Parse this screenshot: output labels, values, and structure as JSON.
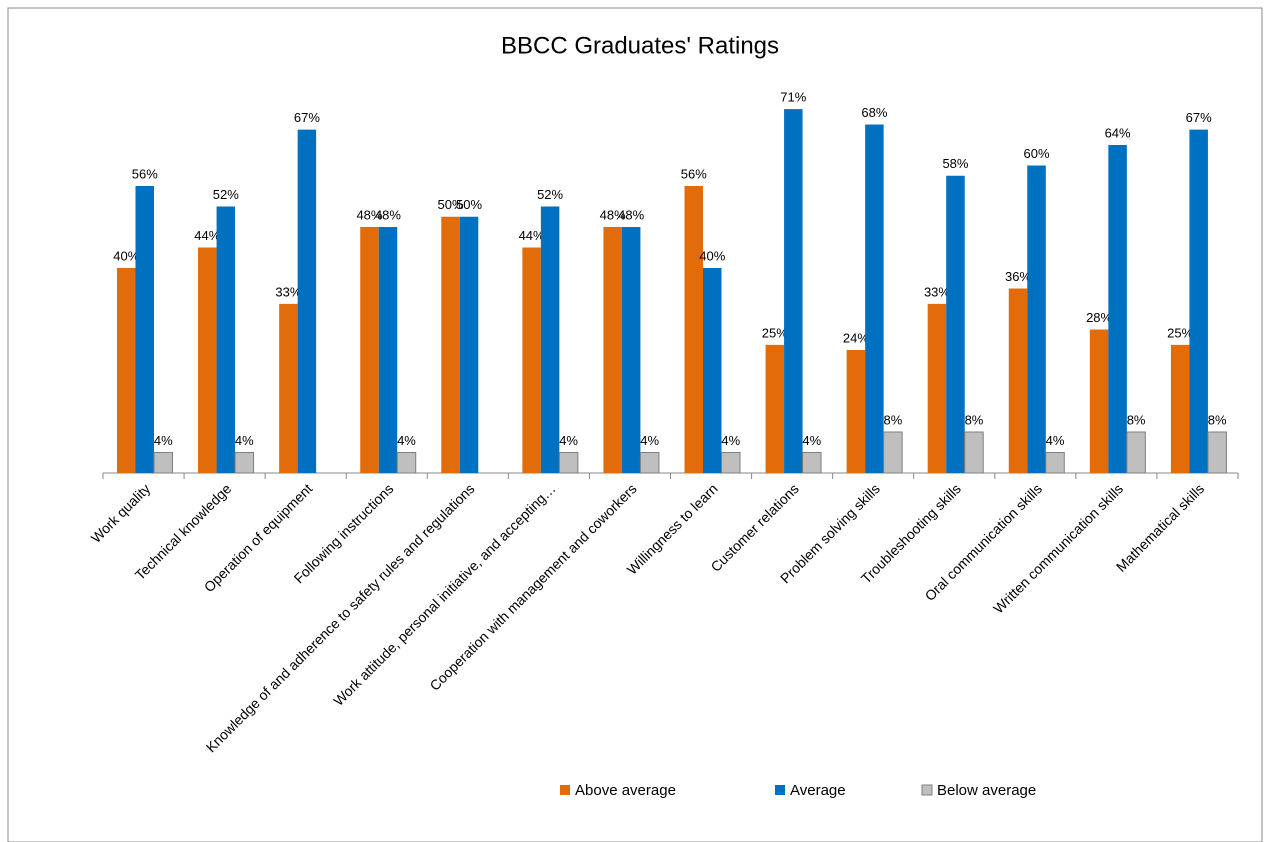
{
  "chart_data": {
    "type": "bar",
    "title": "BBCC Graduates' Ratings",
    "categories": [
      "Work quality",
      "Technical knowledge",
      "Operation of equipment",
      "Following instructions",
      "Knowledge of and adherence to safety rules and regulations",
      "Work attitude, personal initiative, and accepting…",
      "Cooperation with management and coworkers",
      "Willingness to learn",
      "Customer relations",
      "Problem solving skills",
      "Troubleshooting skills",
      "Oral communication skills",
      "Written communication skills",
      "Mathematical skills"
    ],
    "series": [
      {
        "name": "Above average",
        "color": "#e36c0a",
        "values": [
          40,
          44,
          33,
          48,
          50,
          44,
          48,
          56,
          25,
          24,
          33,
          36,
          28,
          25
        ],
        "value_labels": [
          "40%",
          "44%",
          "33%",
          "48%",
          "50%",
          "44%",
          "48%",
          "56%",
          "25%",
          "24%",
          "33%",
          "36%",
          "28%",
          "25%"
        ]
      },
      {
        "name": "Average",
        "color": "#0070c0",
        "values": [
          56,
          52,
          67,
          48,
          50,
          52,
          48,
          40,
          71,
          68,
          58,
          60,
          64,
          67
        ],
        "value_labels": [
          "56%",
          "52%",
          "67%",
          "48%",
          "50%",
          "52%",
          "48%",
          "40%",
          "71%",
          "68%",
          "58%",
          "60%",
          "64%",
          "67%"
        ]
      },
      {
        "name": "Below average",
        "color": "#bfbfbf",
        "values": [
          4,
          4,
          null,
          4,
          null,
          4,
          4,
          4,
          4,
          8,
          8,
          4,
          8,
          8
        ],
        "value_labels": [
          "4%",
          "4%",
          null,
          "4%",
          null,
          "4%",
          "4%",
          "4%",
          "4%",
          "8%",
          "8%",
          "4%",
          "8%",
          "8%"
        ]
      }
    ],
    "ylim": [
      0,
      80
    ],
    "legend": "bottom"
  }
}
